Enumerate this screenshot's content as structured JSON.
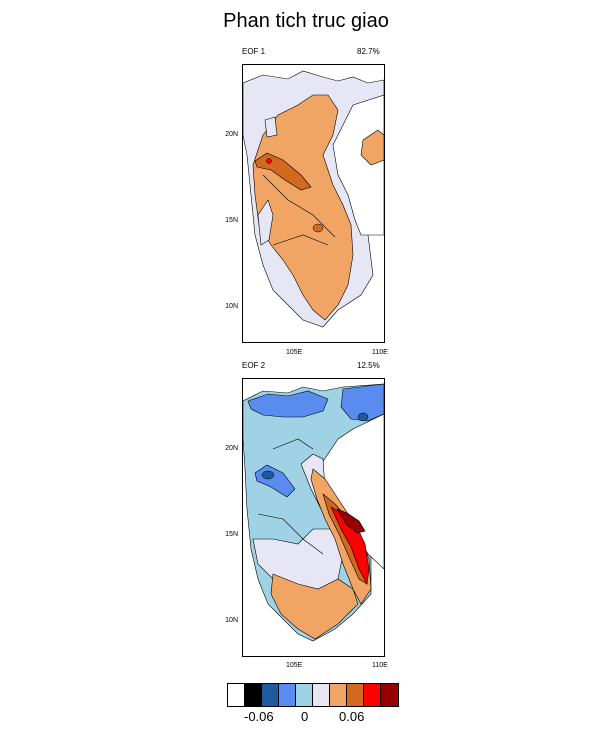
{
  "title": "Phan tich truc giao",
  "panels": [
    {
      "left_label": "EOF 1",
      "right_label": "82.7%"
    },
    {
      "left_label": "EOF 2",
      "right_label": "12.5%"
    }
  ],
  "axes": {
    "x_ticks": [
      "105E",
      "110E"
    ],
    "y_ticks": [
      "20N",
      "15N",
      "10N"
    ]
  },
  "colorbar": {
    "colors": [
      "#ffffff",
      "#000000",
      "#1e5aa0",
      "#5a8cf0",
      "#a0d2e6",
      "#e6e6f5",
      "#f0a564",
      "#d2691e",
      "#ff0000",
      "#960000"
    ],
    "labels": [
      "-0.06",
      "0",
      "0.06"
    ]
  }
}
